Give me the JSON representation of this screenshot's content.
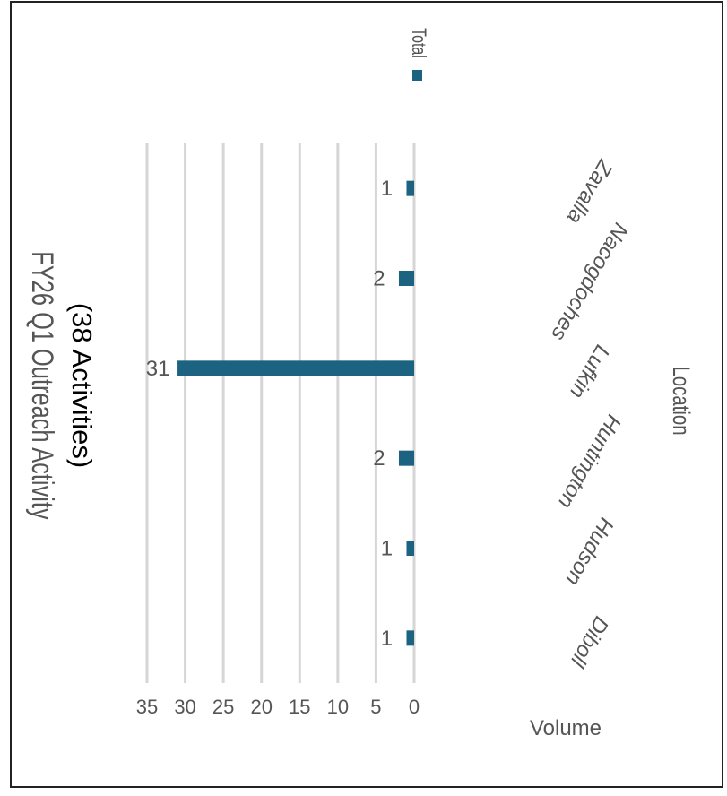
{
  "chart_data": {
    "type": "bar",
    "title": "FY26 Q1 Outreach Activity",
    "subtitle": "(38 Activities)",
    "xlabel": "Location",
    "ylabel": "Volume",
    "categories": [
      "Diboll",
      "Hudson",
      "Huntington",
      "Lufkin",
      "Nacogdoches",
      "Zavalla"
    ],
    "series": [
      {
        "name": "Total",
        "values": [
          1,
          1,
          2,
          31,
          2,
          1
        ]
      }
    ],
    "ylim": [
      0,
      35
    ],
    "yticks": [
      "0",
      "5",
      "10",
      "15",
      "20",
      "25",
      "30",
      "35"
    ],
    "data_labels": [
      "1",
      "1",
      "2",
      "31",
      "2",
      "1"
    ],
    "grid": true,
    "legend_position": "top-right",
    "orientation": "rotated 90° clockwise",
    "colors": {
      "bar": "#1b6381",
      "grid": "#d6d6d6",
      "text": "#555555"
    }
  }
}
